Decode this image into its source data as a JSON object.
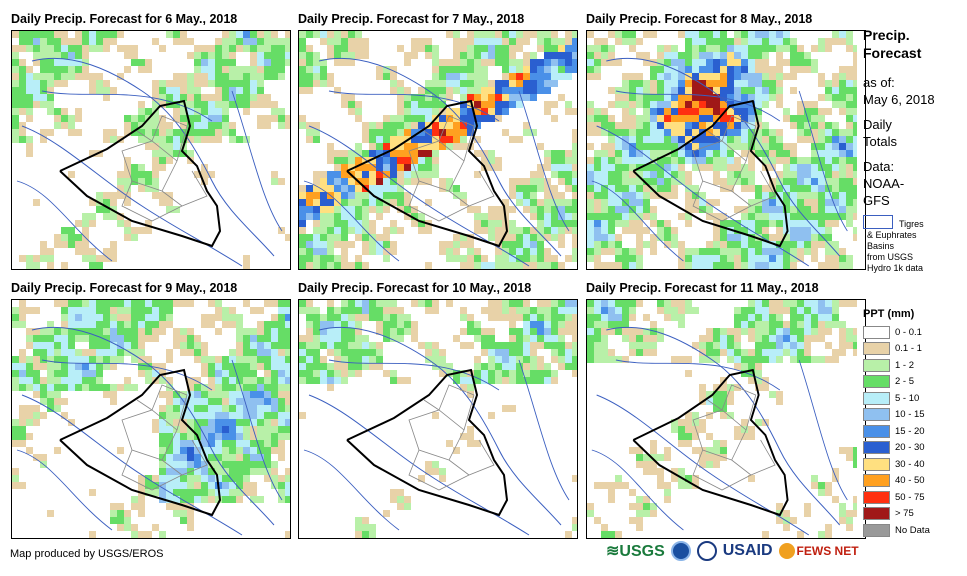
{
  "panels": [
    {
      "title": "Daily Precip. Forecast for 6 May., 2018",
      "day": 0
    },
    {
      "title": "Daily Precip. Forecast for 7 May., 2018",
      "day": 1
    },
    {
      "title": "Daily Precip. Forecast for 8 May., 2018",
      "day": 2
    },
    {
      "title": "Daily Precip. Forecast for 9 May., 2018",
      "day": 3
    },
    {
      "title": "Daily Precip. Forecast for 10 May., 2018",
      "day": 4
    },
    {
      "title": "Daily Precip. Forecast for 11 May., 2018",
      "day": 5
    }
  ],
  "side": {
    "title_line1": "Precip.",
    "title_line2": "Forecast",
    "asof_label": "as of:",
    "asof_date": "May 6, 2018",
    "daily1": "Daily",
    "daily2": "Totals",
    "data_label": "Data:",
    "data_src1": "NOAA-",
    "data_src2": "GFS",
    "basin1": "Tigres",
    "basin2": "& Euphrates",
    "basin3": "Basins",
    "basin4": "from USGS",
    "basin5": "Hydro 1k data"
  },
  "legend": {
    "title": "PPT (mm)",
    "items": [
      {
        "label": "0 - 0.1",
        "color": "#ffffff"
      },
      {
        "label": "0.1 - 1",
        "color": "#e8d2a8"
      },
      {
        "label": "1 - 2",
        "color": "#b8f0a8"
      },
      {
        "label": "2 - 5",
        "color": "#66dd66"
      },
      {
        "label": "5 - 10",
        "color": "#b8eef8"
      },
      {
        "label": "10 - 15",
        "color": "#8fc0f0"
      },
      {
        "label": "15 - 20",
        "color": "#4a90e8"
      },
      {
        "label": "20 - 30",
        "color": "#2a5fd0"
      },
      {
        "label": "30 - 40",
        "color": "#ffe080"
      },
      {
        "label": "40 - 50",
        "color": "#ffa020"
      },
      {
        "label": "50 - 75",
        "color": "#ff3010"
      },
      {
        "label": "> 75",
        "color": "#a01818"
      },
      {
        "label": "No Data",
        "color": "#999999"
      }
    ]
  },
  "credit": "Map produced by USGS/EROS",
  "logos": {
    "usgs": "USGS",
    "usaid": "USAID",
    "fews": "FEWS NET"
  }
}
